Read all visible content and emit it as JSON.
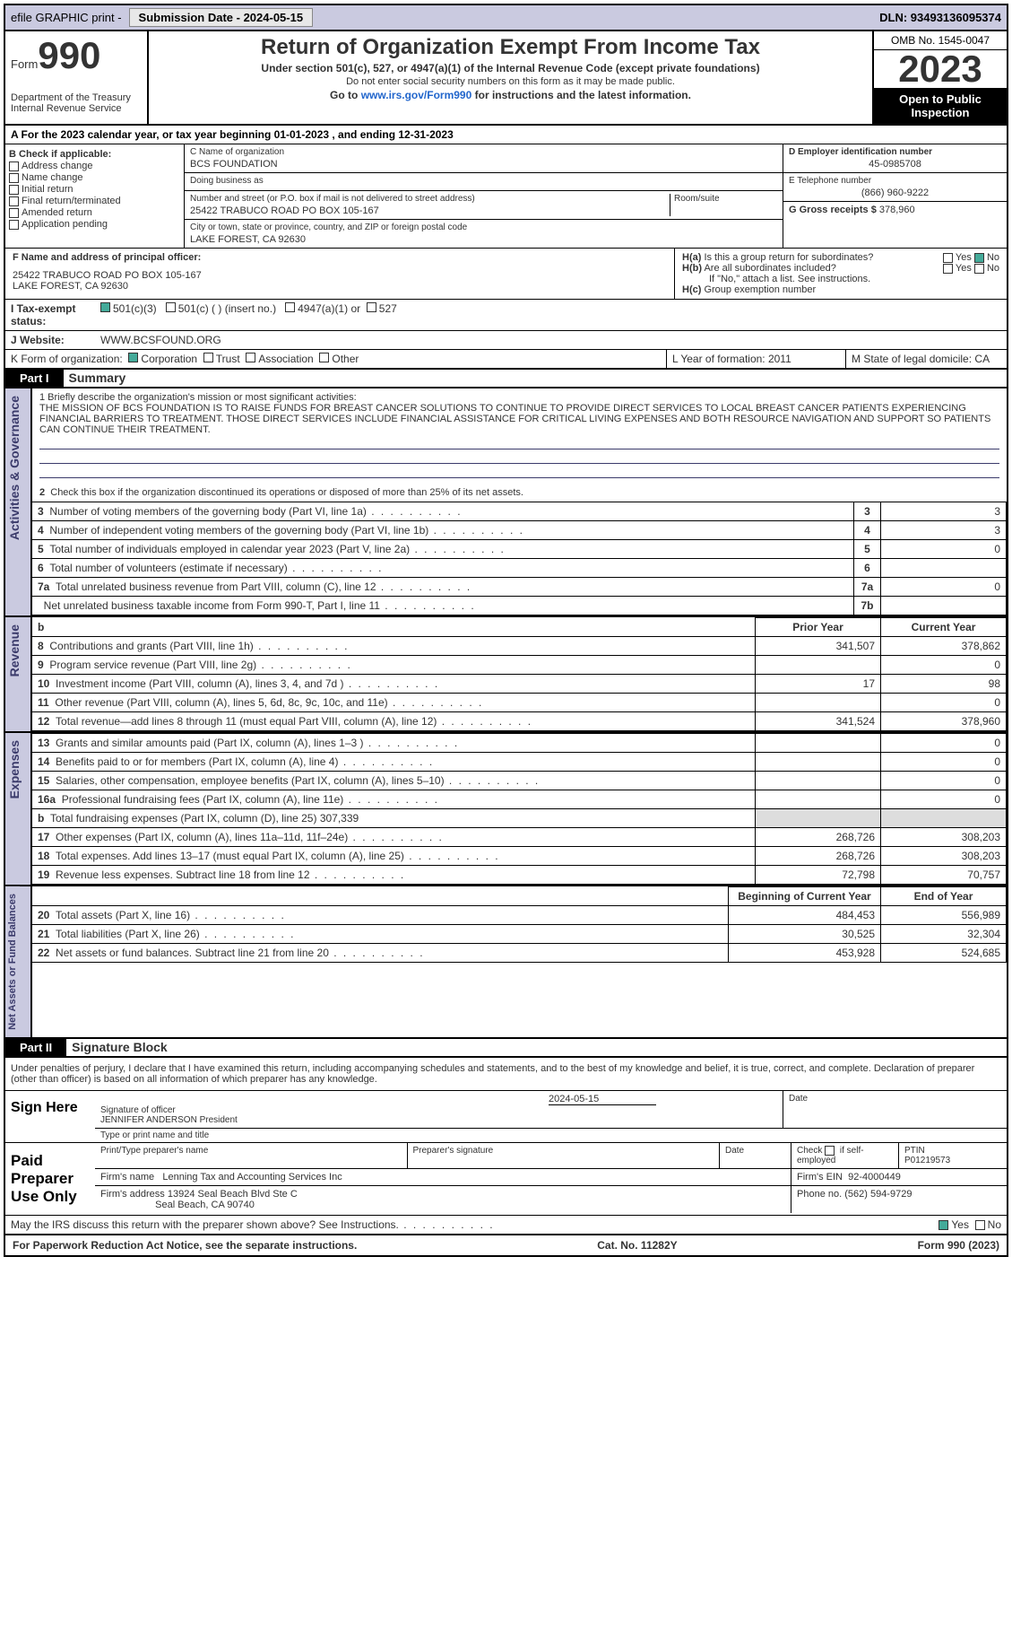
{
  "topbar": {
    "efile": "efile GRAPHIC print -",
    "subdate_lbl": "Submission Date - 2024-05-15",
    "dln": "DLN: 93493136095374"
  },
  "header": {
    "form": "Form",
    "n990": "990",
    "dept": "Department of the Treasury Internal Revenue Service",
    "title": "Return of Organization Exempt From Income Tax",
    "sub1": "Under section 501(c), 527, or 4947(a)(1) of the Internal Revenue Code (except private foundations)",
    "sub2": "Do not enter social security numbers on this form as it may be made public.",
    "sub3": "Go to www.irs.gov/Form990 for instructions and the latest information.",
    "omb": "OMB No. 1545-0047",
    "year": "2023",
    "pub": "Open to Public Inspection"
  },
  "A": {
    "cal": "A For the 2023 calendar year, or tax year beginning 01-01-2023   , and ending 12-31-2023"
  },
  "B": {
    "title": "B Check if applicable:",
    "items": [
      "Address change",
      "Name change",
      "Initial return",
      "Final return/terminated",
      "Amended return",
      "Application pending"
    ]
  },
  "C": {
    "name_lbl": "C Name of organization",
    "name": "BCS FOUNDATION",
    "dba_lbl": "Doing business as",
    "dba": "",
    "street_lbl": "Number and street (or P.O. box if mail is not delivered to street address)",
    "room_lbl": "Room/suite",
    "street": "25422 TRABUCO ROAD PO BOX 105-167",
    "city_lbl": "City or town, state or province, country, and ZIP or foreign postal code",
    "city": "LAKE FOREST, CA  92630"
  },
  "D": {
    "lbl": "D Employer identification number",
    "val": "45-0985708"
  },
  "E": {
    "lbl": "E Telephone number",
    "val": "(866) 960-9222"
  },
  "G": {
    "lbl": "G Gross receipts $",
    "val": "378,960"
  },
  "F": {
    "lbl": "F  Name and address of principal officer:",
    "addr1": "25422 TRABUCO ROAD PO BOX 105-167",
    "addr2": "LAKE FOREST, CA  92630"
  },
  "H": {
    "a": "H(a)  Is this a group return for subordinates?",
    "b": "H(b)  Are all subordinates included?",
    "bnote": "If \"No,\" attach a list. See instructions.",
    "c": "H(c)  Group exemption number"
  },
  "I": {
    "lbl": "Tax-exempt status:",
    "opts": [
      "501(c)(3)",
      "501(c) (  ) (insert no.)",
      "4947(a)(1) or",
      "527"
    ]
  },
  "J": {
    "lbl": "Website:",
    "val": "WWW.BCSFOUND.ORG"
  },
  "K": {
    "lbl": "K Form of organization:",
    "opts": [
      "Corporation",
      "Trust",
      "Association",
      "Other"
    ]
  },
  "L": {
    "lbl": "L Year of formation: 2011"
  },
  "M": {
    "lbl": "M State of legal domicile: CA"
  },
  "part1": {
    "hdr": "Part I",
    "title": "Summary"
  },
  "mission": {
    "q": "1  Briefly describe the organization's mission or most significant activities:",
    "txt": "THE MISSION OF BCS FOUNDATION IS TO RAISE FUNDS FOR BREAST CANCER SOLUTIONS TO CONTINUE TO PROVIDE DIRECT SERVICES TO LOCAL BREAST CANCER PATIENTS EXPERIENCING FINANCIAL BARRIERS TO TREATMENT. THOSE DIRECT SERVICES INCLUDE FINANCIAL ASSISTANCE FOR CRITICAL LIVING EXPENSES AND BOTH RESOURCE NAVIGATION AND SUPPORT SO PATIENTS CAN CONTINUE THEIR TREATMENT."
  },
  "gov": {
    "side": "Activities & Governance",
    "l2": "Check this box       if the organization discontinued its operations or disposed of more than 25% of its net assets.",
    "rows": [
      {
        "n": "3",
        "t": "Number of voting members of the governing body (Part VI, line 1a)",
        "b": "3",
        "v": "3"
      },
      {
        "n": "4",
        "t": "Number of independent voting members of the governing body (Part VI, line 1b)",
        "b": "4",
        "v": "3"
      },
      {
        "n": "5",
        "t": "Total number of individuals employed in calendar year 2023 (Part V, line 2a)",
        "b": "5",
        "v": "0"
      },
      {
        "n": "6",
        "t": "Total number of volunteers (estimate if necessary)",
        "b": "6",
        "v": ""
      },
      {
        "n": "7a",
        "t": "Total unrelated business revenue from Part VIII, column (C), line 12",
        "b": "7a",
        "v": "0"
      },
      {
        "n": "",
        "t": "Net unrelated business taxable income from Form 990-T, Part I, line 11",
        "b": "7b",
        "v": ""
      }
    ]
  },
  "rev": {
    "side": "Revenue",
    "hdr_prior": "Prior Year",
    "hdr_cur": "Current Year",
    "rows": [
      {
        "n": "8",
        "t": "Contributions and grants (Part VIII, line 1h)",
        "p": "341,507",
        "c": "378,862"
      },
      {
        "n": "9",
        "t": "Program service revenue (Part VIII, line 2g)",
        "p": "",
        "c": "0"
      },
      {
        "n": "10",
        "t": "Investment income (Part VIII, column (A), lines 3, 4, and 7d )",
        "p": "17",
        "c": "98"
      },
      {
        "n": "11",
        "t": "Other revenue (Part VIII, column (A), lines 5, 6d, 8c, 9c, 10c, and 11e)",
        "p": "",
        "c": "0"
      },
      {
        "n": "12",
        "t": "Total revenue—add lines 8 through 11 (must equal Part VIII, column (A), line 12)",
        "p": "341,524",
        "c": "378,960"
      }
    ]
  },
  "exp": {
    "side": "Expenses",
    "rows": [
      {
        "n": "13",
        "t": "Grants and similar amounts paid (Part IX, column (A), lines 1–3 )",
        "p": "",
        "c": "0"
      },
      {
        "n": "14",
        "t": "Benefits paid to or for members (Part IX, column (A), line 4)",
        "p": "",
        "c": "0"
      },
      {
        "n": "15",
        "t": "Salaries, other compensation, employee benefits (Part IX, column (A), lines 5–10)",
        "p": "",
        "c": "0"
      },
      {
        "n": "16a",
        "t": "Professional fundraising fees (Part IX, column (A), line 11e)",
        "p": "",
        "c": "0"
      },
      {
        "n": "b",
        "t": "Total fundraising expenses (Part IX, column (D), line 25) 307,339",
        "p": "grey",
        "c": "grey"
      },
      {
        "n": "17",
        "t": "Other expenses (Part IX, column (A), lines 11a–11d, 11f–24e)",
        "p": "268,726",
        "c": "308,203"
      },
      {
        "n": "18",
        "t": "Total expenses. Add lines 13–17 (must equal Part IX, column (A), line 25)",
        "p": "268,726",
        "c": "308,203"
      },
      {
        "n": "19",
        "t": "Revenue less expenses. Subtract line 18 from line 12",
        "p": "72,798",
        "c": "70,757"
      }
    ]
  },
  "net": {
    "side": "Net Assets or Fund Balances",
    "hdr_b": "Beginning of Current Year",
    "hdr_e": "End of Year",
    "rows": [
      {
        "n": "20",
        "t": "Total assets (Part X, line 16)",
        "p": "484,453",
        "c": "556,989"
      },
      {
        "n": "21",
        "t": "Total liabilities (Part X, line 26)",
        "p": "30,525",
        "c": "32,304"
      },
      {
        "n": "22",
        "t": "Net assets or fund balances. Subtract line 21 from line 20",
        "p": "453,928",
        "c": "524,685"
      }
    ]
  },
  "part2": {
    "hdr": "Part II",
    "title": "Signature Block",
    "decl": "Under penalties of perjury, I declare that I have examined this return, including accompanying schedules and statements, and to the best of my knowledge and belief, it is true, correct, and complete. Declaration of preparer (other than officer) is based on all information of which preparer has any knowledge."
  },
  "sign": {
    "lbl": "Sign Here",
    "sig_lbl": "Signature of officer",
    "date": "2024-05-15",
    "name": "JENNIFER ANDERSON  President",
    "type_lbl": "Type or print name and title"
  },
  "prep": {
    "lbl": "Paid Preparer Use Only",
    "name_lbl": "Print/Type preparer's name",
    "sig_lbl": "Preparer's signature",
    "date_lbl": "Date",
    "chk_lbl": "Check        if self-employed",
    "ptin_lbl": "PTIN",
    "ptin": "P01219573",
    "firm_lbl": "Firm's name",
    "firm": "Lenning Tax and Accounting Services Inc",
    "ein_lbl": "Firm's EIN",
    "ein": "92-4000449",
    "addr_lbl": "Firm's address",
    "addr1": "13924 Seal Beach Blvd Ste C",
    "addr2": "Seal Beach, CA  90740",
    "phone_lbl": "Phone no.",
    "phone": "(562) 594-9729"
  },
  "discuss": "May the IRS discuss this return with the preparer shown above? See Instructions.",
  "footer": {
    "pra": "For Paperwork Reduction Act Notice, see the separate instructions.",
    "cat": "Cat. No. 11282Y",
    "form": "Form 990 (2023)"
  }
}
